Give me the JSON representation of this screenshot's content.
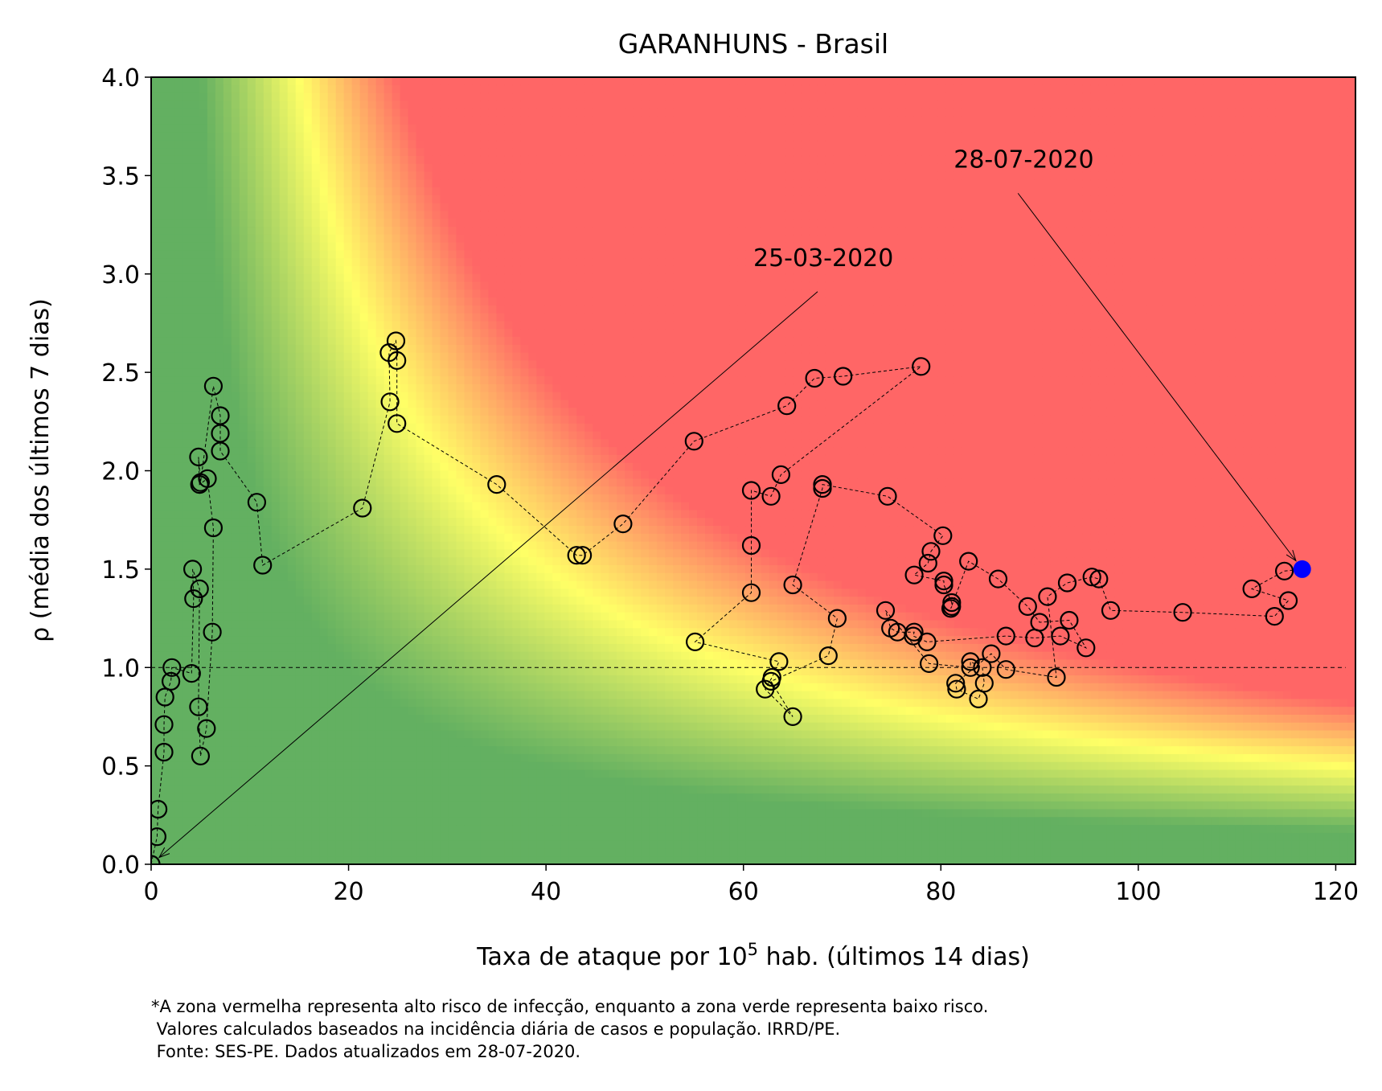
{
  "chart_data": {
    "type": "scatter",
    "title": "GARANHUNS - Brasil",
    "xlabel": {
      "prefix": "Taxa de ataque por 10",
      "sup": "5",
      "suffix": " hab. (últimos 14 dias)"
    },
    "ylabel": "ρ (média dos últimos 7 dias)",
    "xlim": [
      0,
      122
    ],
    "ylim": [
      0,
      4
    ],
    "xticks": [
      0,
      20,
      40,
      60,
      80,
      100,
      120
    ],
    "yticks": [
      0.0,
      0.5,
      1.0,
      1.5,
      2.0,
      2.5,
      3.0,
      3.5,
      4.0
    ],
    "ytick_labels": [
      "0.0",
      "0.5",
      "1.0",
      "1.5",
      "2.0",
      "2.5",
      "3.0",
      "3.5",
      "4.0"
    ],
    "reference_line_y": 1.0,
    "background": "risk gradient: green (low) to yellow to red (high)",
    "colors": {
      "low": "#63b061",
      "mid": "#ffff66",
      "high": "#ff6666",
      "marker_edge": "#000000",
      "last_point": "#0000ff"
    },
    "points": [
      [
        0.0,
        0.0
      ],
      [
        0.6,
        0.14
      ],
      [
        0.7,
        0.28
      ],
      [
        1.3,
        0.57
      ],
      [
        1.3,
        0.71
      ],
      [
        1.4,
        0.85
      ],
      [
        2.0,
        0.93
      ],
      [
        2.1,
        1.0
      ],
      [
        4.1,
        0.97
      ],
      [
        4.3,
        1.35
      ],
      [
        4.2,
        1.5
      ],
      [
        4.9,
        1.4
      ],
      [
        4.8,
        0.8
      ],
      [
        5.0,
        0.55
      ],
      [
        5.6,
        0.69
      ],
      [
        6.2,
        1.18
      ],
      [
        6.3,
        1.71
      ],
      [
        5.7,
        1.96
      ],
      [
        4.9,
        1.93
      ],
      [
        4.8,
        2.07
      ],
      [
        5.0,
        1.94
      ],
      [
        6.3,
        2.43
      ],
      [
        7.0,
        2.28
      ],
      [
        7.0,
        2.19
      ],
      [
        7.0,
        2.1
      ],
      [
        10.7,
        1.84
      ],
      [
        11.3,
        1.52
      ],
      [
        21.4,
        1.81
      ],
      [
        24.2,
        2.35
      ],
      [
        24.1,
        2.6
      ],
      [
        24.8,
        2.66
      ],
      [
        24.9,
        2.56
      ],
      [
        24.9,
        2.24
      ],
      [
        35.0,
        1.93
      ],
      [
        43.1,
        1.57
      ],
      [
        43.7,
        1.57
      ],
      [
        47.8,
        1.73
      ],
      [
        55.0,
        2.15
      ],
      [
        64.4,
        2.33
      ],
      [
        67.2,
        2.47
      ],
      [
        70.1,
        2.48
      ],
      [
        78.0,
        2.53
      ],
      [
        63.8,
        1.98
      ],
      [
        62.8,
        1.87
      ],
      [
        60.8,
        1.9
      ],
      [
        60.8,
        1.62
      ],
      [
        60.8,
        1.38
      ],
      [
        55.1,
        1.13
      ],
      [
        63.6,
        1.03
      ],
      [
        62.9,
        0.95
      ],
      [
        62.2,
        0.89
      ],
      [
        65.0,
        0.75
      ],
      [
        62.8,
        0.93
      ],
      [
        68.6,
        1.06
      ],
      [
        69.5,
        1.25
      ],
      [
        65.0,
        1.42
      ],
      [
        68.0,
        1.91
      ],
      [
        68.0,
        1.93
      ],
      [
        74.6,
        1.87
      ],
      [
        80.2,
        1.67
      ],
      [
        79.0,
        1.59
      ],
      [
        78.7,
        1.53
      ],
      [
        77.3,
        1.47
      ],
      [
        80.3,
        1.44
      ],
      [
        80.3,
        1.42
      ],
      [
        81.1,
        1.33
      ],
      [
        81.1,
        1.31
      ],
      [
        81.0,
        1.3
      ],
      [
        82.8,
        1.54
      ],
      [
        85.8,
        1.45
      ],
      [
        88.8,
        1.31
      ],
      [
        90.0,
        1.23
      ],
      [
        93.0,
        1.24
      ],
      [
        94.7,
        1.1
      ],
      [
        92.1,
        1.16
      ],
      [
        89.5,
        1.15
      ],
      [
        86.6,
        1.16
      ],
      [
        78.6,
        1.13
      ],
      [
        77.2,
        1.16
      ],
      [
        77.3,
        1.18
      ],
      [
        75.6,
        1.18
      ],
      [
        74.9,
        1.2
      ],
      [
        74.4,
        1.29
      ],
      [
        78.8,
        1.02
      ],
      [
        83.0,
        1.0
      ],
      [
        83.0,
        1.03
      ],
      [
        84.2,
        1.0
      ],
      [
        84.4,
        0.92
      ],
      [
        83.8,
        0.84
      ],
      [
        81.6,
        0.89
      ],
      [
        81.5,
        0.92
      ],
      [
        85.1,
        1.07
      ],
      [
        86.6,
        0.99
      ],
      [
        91.7,
        0.95
      ],
      [
        90.8,
        1.36
      ],
      [
        92.8,
        1.43
      ],
      [
        95.3,
        1.46
      ],
      [
        96.0,
        1.45
      ],
      [
        97.2,
        1.29
      ],
      [
        104.5,
        1.28
      ],
      [
        113.8,
        1.26
      ],
      [
        115.2,
        1.34
      ],
      [
        111.5,
        1.4
      ],
      [
        114.8,
        1.49
      ],
      [
        116.6,
        1.5
      ]
    ],
    "annotations": [
      {
        "text": "25-03-2020",
        "target": [
          0.0,
          0.0
        ],
        "text_pos": [
          61,
          3.0
        ]
      },
      {
        "text": "28-07-2020",
        "target": [
          116.6,
          1.5
        ],
        "text_pos": [
          81.3,
          3.5
        ]
      }
    ]
  },
  "footnote": [
    "*A zona vermelha representa alto risco de infecção, enquanto a zona verde representa baixo risco.",
    " Valores calculados baseados na incidência diária de casos e população. IRRD/PE.",
    " Fonte: SES-PE. Dados atualizados em 28-07-2020."
  ]
}
